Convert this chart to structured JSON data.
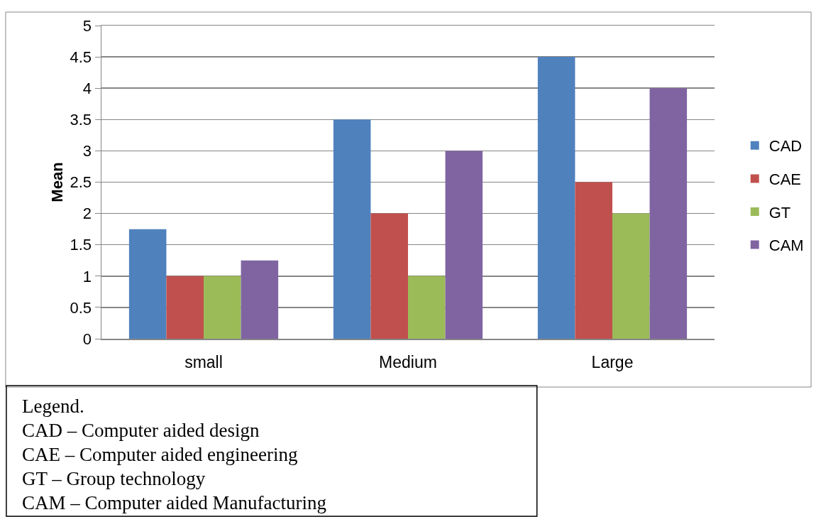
{
  "chart_data": {
    "type": "bar",
    "ylabel": "Mean",
    "categories": [
      "small",
      "Medium",
      "Large"
    ],
    "series": [
      {
        "name": "CAD",
        "color": "#4f81bd",
        "values": [
          1.75,
          3.5,
          4.5
        ]
      },
      {
        "name": "CAE",
        "color": "#c0504d",
        "values": [
          1,
          2,
          2.5
        ]
      },
      {
        "name": "GT",
        "color": "#9bbb59",
        "values": [
          1,
          1,
          2
        ]
      },
      {
        "name": "CAM",
        "color": "#8064a2",
        "values": [
          1.25,
          3,
          4
        ]
      }
    ],
    "ylim": [
      0,
      5
    ],
    "yticks": [
      0,
      0.5,
      1,
      1.5,
      2,
      2.5,
      3,
      3.5,
      4,
      4.5,
      5
    ],
    "grid": "y",
    "legend": "right",
    "annotations": [
      "Legend.",
      "CAD – Computer aided design",
      "CAE – Computer aided engineering",
      "GT – Group technology",
      "CAM – Computer aided Manufacturing"
    ]
  }
}
